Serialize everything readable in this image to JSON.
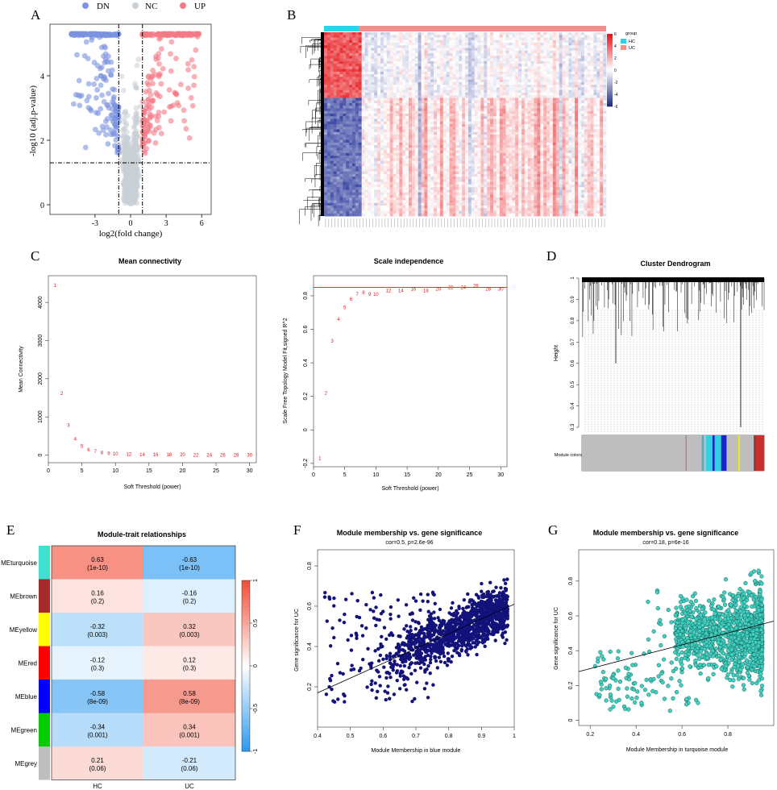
{
  "panels": {
    "A": "A",
    "B": "B",
    "C": "C",
    "D": "D",
    "E": "E",
    "F": "F",
    "G": "G"
  },
  "chart_data": [
    {
      "id": "A",
      "type": "scatter",
      "legend": [
        {
          "name": "DN",
          "color": "#7b93e0"
        },
        {
          "name": "NC",
          "color": "#c8cfd6"
        },
        {
          "name": "UP",
          "color": "#f37a85"
        }
      ],
      "xlabel": "log2(fold change)",
      "ylabel": "-log10 (adj.p-value)",
      "xticks": [
        -3,
        0,
        3,
        6
      ],
      "yticks": [
        0,
        2,
        4
      ],
      "xlim": [
        -6.8,
        6.8
      ],
      "ylim": [
        -0.3,
        5.6
      ],
      "fc_cutoff": 1,
      "p_cutoff": 1.3
    },
    {
      "id": "B",
      "type": "heatmap",
      "legend_title": "group",
      "groups": [
        {
          "name": "HC",
          "color": "#2ad3e6"
        },
        {
          "name": "UC",
          "color": "#f3908e"
        }
      ],
      "colorbar_ticks": [
        6,
        4,
        2,
        0,
        -2,
        -4,
        -6
      ],
      "colorbar_colors": [
        "#e8141c",
        "#ffffff",
        "#1f2c85"
      ]
    },
    {
      "id": "C1",
      "type": "scatter",
      "title": "Mean connectivity",
      "xlabel": "Soft Threshold (power)",
      "ylabel": "Mean Connectivity",
      "xlim": [
        0,
        31
      ],
      "ylim": [
        -200,
        4700
      ],
      "xticks": [
        0,
        5,
        10,
        15,
        20,
        25,
        30
      ],
      "yticks": [
        0,
        1000,
        2000,
        3000,
        4000
      ],
      "labels": [
        "1",
        "2",
        "3",
        "4",
        "5",
        "6",
        "7",
        "8",
        "9",
        "10",
        "12",
        "14",
        "16",
        "18",
        "20",
        "22",
        "24",
        "26",
        "28",
        "30"
      ],
      "x": [
        1,
        2,
        3,
        4,
        5,
        6,
        7,
        8,
        9,
        10,
        12,
        14,
        16,
        18,
        20,
        22,
        24,
        26,
        28,
        30
      ],
      "y": [
        4450,
        1620,
        780,
        420,
        230,
        140,
        95,
        65,
        45,
        35,
        22,
        15,
        11,
        8,
        6,
        5,
        4,
        3,
        3,
        2
      ],
      "color": "#e8141c"
    },
    {
      "id": "C2",
      "type": "scatter",
      "title": "Scale independence",
      "xlabel": "Soft Threshold (power)",
      "ylabel": "Scale Free Topology Model Fit,signed R^2",
      "xlim": [
        0,
        31
      ],
      "ylim": [
        -0.22,
        0.92
      ],
      "xticks": [
        0,
        5,
        10,
        15,
        20,
        25,
        30
      ],
      "yticks": [
        -0.2,
        0,
        0.2,
        0.4,
        0.6,
        0.8
      ],
      "labels": [
        "1",
        "2",
        "3",
        "4",
        "5",
        "6",
        "7",
        "8",
        "9",
        "10",
        "12",
        "14",
        "16",
        "18",
        "20",
        "22",
        "24",
        "26",
        "28",
        "30"
      ],
      "x": [
        1,
        2,
        3,
        4,
        5,
        6,
        7,
        8,
        9,
        10,
        12,
        14,
        16,
        18,
        20,
        22,
        24,
        26,
        28,
        30
      ],
      "y": [
        -0.17,
        0.22,
        0.53,
        0.66,
        0.73,
        0.78,
        0.81,
        0.82,
        0.81,
        0.81,
        0.83,
        0.83,
        0.84,
        0.83,
        0.84,
        0.85,
        0.85,
        0.86,
        0.84,
        0.84
      ],
      "hline": 0.85,
      "color": "#e8141c"
    },
    {
      "id": "D",
      "type": "dendrogram",
      "title": "Cluster Dendrogram",
      "ylabel": "Height",
      "yticks": [
        1,
        0.9,
        0.8,
        0.7,
        0.6,
        0.5,
        0.4,
        0.3
      ],
      "ylim": [
        0.3,
        1.0
      ],
      "module_label": "Module colors",
      "modules": [
        {
          "color": "#bebebe",
          "frac": 0.48
        },
        {
          "color": "#ad7d78",
          "frac": 0.005
        },
        {
          "color": "#bebebe",
          "frac": 0.07
        },
        {
          "color": "#55aac6",
          "frac": 0.01
        },
        {
          "color": "#bebebe",
          "frac": 0.01
        },
        {
          "color": "#2fd3e0",
          "frac": 0.03
        },
        {
          "color": "#1a24c8",
          "frac": 0.01
        },
        {
          "color": "#2fd3e0",
          "frac": 0.03
        },
        {
          "color": "#1a24c8",
          "frac": 0.025
        },
        {
          "color": "#bebebe",
          "frac": 0.055
        },
        {
          "color": "#f4f000",
          "frac": 0.006
        },
        {
          "color": "#bebebe",
          "frac": 0.065
        },
        {
          "color": "#8b3a3a",
          "frac": 0.008
        },
        {
          "color": "#c9302c",
          "frac": 0.04
        }
      ]
    },
    {
      "id": "E",
      "type": "heatmap",
      "title": "Module-trait relationships",
      "columns": [
        "HC",
        "UC"
      ],
      "rows": [
        {
          "name": "MEturquoise",
          "color": "#40e0d0",
          "values": [
            "0.63",
            "-0.63"
          ],
          "p": [
            "(1e-10)",
            "(1e-10)"
          ],
          "r": [
            0.63,
            -0.63
          ]
        },
        {
          "name": "MEbrown",
          "color": "#a52a2a",
          "values": [
            "0.16",
            "-0.16"
          ],
          "p": [
            "(0.2)",
            "(0.2)"
          ],
          "r": [
            0.16,
            -0.16
          ]
        },
        {
          "name": "MEyellow",
          "color": "#ffff00",
          "values": [
            "-0.32",
            "0.32"
          ],
          "p": [
            "(0.003)",
            "(0.003)"
          ],
          "r": [
            -0.32,
            0.32
          ]
        },
        {
          "name": "MEred",
          "color": "#ff0000",
          "values": [
            "-0.12",
            "0.12"
          ],
          "p": [
            "(0.3)",
            "(0.3)"
          ],
          "r": [
            -0.12,
            0.12
          ]
        },
        {
          "name": "MEblue",
          "color": "#0000ff",
          "values": [
            "-0.58",
            "0.58"
          ],
          "p": [
            "(8e-09)",
            "(8e-09)"
          ],
          "r": [
            -0.58,
            0.58
          ]
        },
        {
          "name": "MEgreen",
          "color": "#00cc00",
          "values": [
            "-0.34",
            "0.34"
          ],
          "p": [
            "(0.001)",
            "(0.001)"
          ],
          "r": [
            -0.34,
            0.34
          ]
        },
        {
          "name": "MEgrey",
          "color": "#bebebe",
          "values": [
            "0.21",
            "-0.21"
          ],
          "p": [
            "(0.06)",
            "(0.06)"
          ],
          "r": [
            0.21,
            -0.21
          ]
        }
      ],
      "colorbar_ticks": [
        "1",
        "0.5",
        "0",
        "-0.5",
        "-1"
      ]
    },
    {
      "id": "F",
      "type": "scatter",
      "title": "Module membership vs. gene significance",
      "subtitle": "cor=0.5, p=2.6e-96",
      "xlabel": "Module Membership in blue module",
      "ylabel": "Gene significance for UC",
      "xlim": [
        0.4,
        1.0
      ],
      "ylim": [
        0.0,
        0.88
      ],
      "xticks": [
        0.4,
        0.5,
        0.6,
        0.7,
        0.8,
        0.9,
        1.0
      ],
      "yticks": [
        0.2,
        0.4,
        0.6,
        0.8
      ],
      "fit": [
        [
          0.4,
          0.17
        ],
        [
          1.0,
          0.61
        ]
      ],
      "color": "#12127a"
    },
    {
      "id": "G",
      "type": "scatter",
      "title": "Module membership vs. gene significance",
      "subtitle": "cor=0.18, p=6e-16",
      "xlabel": "Module Membership in turquoise module",
      "ylabel": "Gene significance for UC",
      "xlim": [
        0.15,
        1.0
      ],
      "ylim": [
        -0.03,
        0.98
      ],
      "xticks": [
        0.2,
        0.4,
        0.6,
        0.8
      ],
      "yticks": [
        0.0,
        0.2,
        0.4,
        0.6,
        0.8
      ],
      "fit": [
        [
          0.15,
          0.28
        ],
        [
          1.0,
          0.57
        ]
      ],
      "color": "#40d0c0"
    }
  ]
}
